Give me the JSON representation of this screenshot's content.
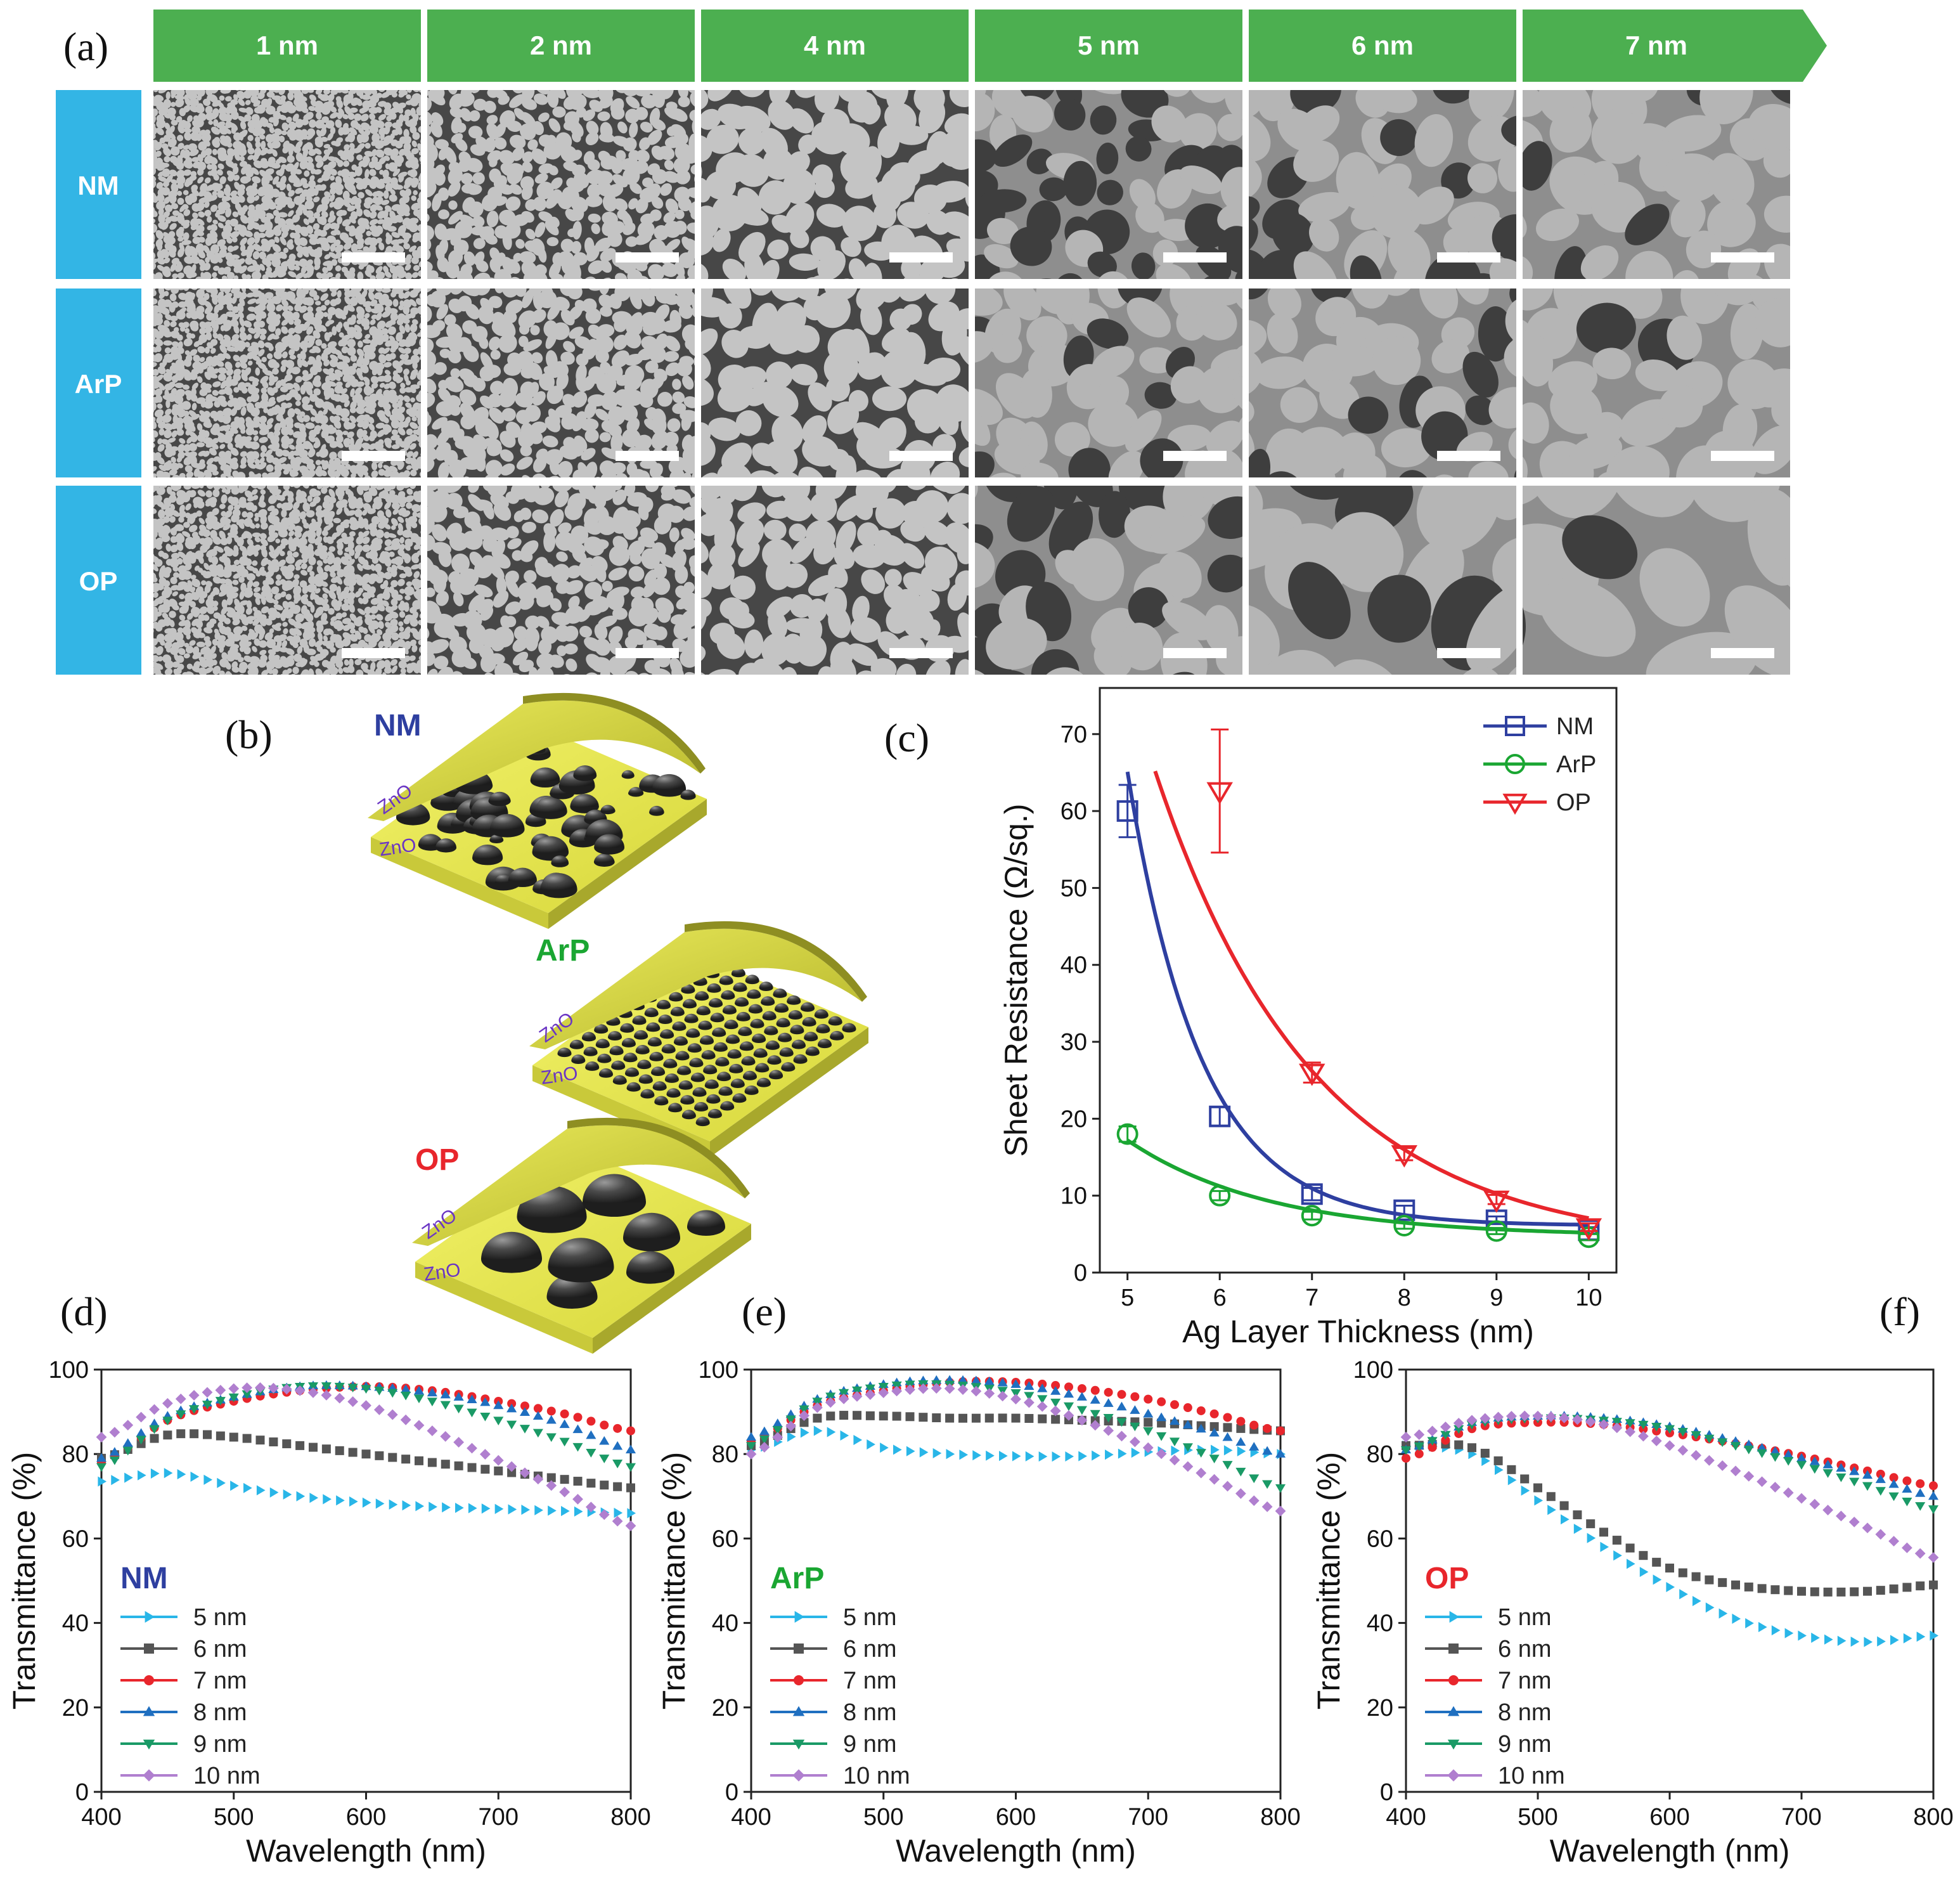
{
  "colors": {
    "green_header": "#4caf50",
    "blue_label": "#33b5e5",
    "nm": "#2e3fa0",
    "arp": "#1aa632",
    "op": "#e8262c",
    "s5": "#29b6e8",
    "s6": "#555555",
    "s7": "#e8262c",
    "s8": "#1f6fc0",
    "s9": "#1a9a66",
    "s10": "#b07fcf"
  },
  "panel_a": {
    "letter": "(a)",
    "columns": [
      "1 nm",
      "2 nm",
      "4 nm",
      "5 nm",
      "6 nm",
      "7 nm"
    ],
    "rows": [
      "NM",
      "ArP",
      "OP"
    ]
  },
  "panel_b": {
    "letter": "(b)",
    "labels": [
      "NM",
      "ArP",
      "OP"
    ],
    "layer_label": "ZnO"
  },
  "chart_data": [
    {
      "panel": "(c)",
      "type": "scatter",
      "xlabel": "Ag Layer Thickness (nm)",
      "ylabel": "Sheet Resistance (Ω/sq.)",
      "xlim": [
        4.7,
        10.3
      ],
      "ylim": [
        0,
        76
      ],
      "xticks": [
        5,
        6,
        7,
        8,
        9,
        10
      ],
      "yticks": [
        0,
        10,
        20,
        30,
        40,
        50,
        60,
        70
      ],
      "legend": [
        "NM",
        "ArP",
        "OP"
      ],
      "series": [
        {
          "name": "NM",
          "x": [
            5,
            6,
            7,
            8,
            9,
            10
          ],
          "y": [
            60,
            20.3,
            10.2,
            8.1,
            6.8,
            5.5
          ],
          "err": [
            3.4,
            1.2,
            0.8,
            0.6,
            0.5,
            0.4
          ],
          "fit": {
            "a": 59,
            "k": 1.25,
            "c": 6.1
          }
        },
        {
          "name": "ArP",
          "x": [
            5,
            6,
            7,
            8,
            9,
            10
          ],
          "y": [
            18,
            10,
            7.4,
            6.1,
            5.4,
            4.6
          ],
          "err": [
            1.0,
            0.6,
            0.5,
            0.4,
            0.4,
            0.4
          ],
          "fit": {
            "a": 12.5,
            "k": 0.65,
            "c": 4.7
          }
        },
        {
          "name": "OP",
          "x": [
            6,
            7,
            8,
            9,
            10
          ],
          "y": [
            62.6,
            26,
            15.4,
            9.5,
            5.9
          ],
          "err": [
            8,
            1.3,
            0.8,
            0.6,
            0.5
          ],
          "fit": {
            "a": 74,
            "k": 0.58,
            "c": 3
          }
        }
      ]
    },
    {
      "panel": "(d)",
      "type": "line",
      "annotation": "NM",
      "xlabel": "Wavelength (nm)",
      "ylabel": "Transmittance (%)",
      "xlim": [
        400,
        800
      ],
      "ylim": [
        0,
        100
      ],
      "xticks": [
        400,
        500,
        600,
        700,
        800
      ],
      "yticks": [
        0,
        20,
        40,
        60,
        80,
        100
      ],
      "legend": [
        "5 nm",
        "6 nm",
        "7 nm",
        "8 nm",
        "9 nm",
        "10 nm"
      ],
      "x": [
        400,
        450,
        500,
        550,
        600,
        650,
        700,
        750,
        800
      ],
      "series": [
        {
          "name": "5 nm",
          "values": [
            73.5,
            75.5,
            72.5,
            70,
            68.5,
            67.5,
            67,
            66.5,
            66
          ]
        },
        {
          "name": "6 nm",
          "values": [
            79,
            84.5,
            84,
            82,
            80,
            78,
            76,
            74,
            72
          ]
        },
        {
          "name": "7 nm",
          "values": [
            78,
            88,
            92.5,
            95,
            96,
            95,
            92.5,
            89.5,
            85.5
          ]
        },
        {
          "name": "8 nm",
          "values": [
            79,
            89,
            93.5,
            96,
            96,
            94.5,
            91.5,
            87,
            81
          ]
        },
        {
          "name": "9 nm",
          "values": [
            77,
            88,
            93.5,
            96,
            95.5,
            92.5,
            88,
            83,
            77
          ]
        },
        {
          "name": "10 nm",
          "values": [
            84,
            92,
            95.5,
            95,
            91.5,
            85.5,
            78.5,
            71,
            63
          ]
        }
      ]
    },
    {
      "panel": "(e)",
      "type": "line",
      "annotation": "ArP",
      "xlabel": "Wavelength (nm)",
      "ylabel": "Transmittance (%)",
      "xlim": [
        400,
        800
      ],
      "ylim": [
        0,
        100
      ],
      "xticks": [
        400,
        500,
        600,
        700,
        800
      ],
      "yticks": [
        0,
        20,
        40,
        60,
        80,
        100
      ],
      "legend": [
        "5 nm",
        "6 nm",
        "7 nm",
        "8 nm",
        "9 nm",
        "10 nm"
      ],
      "x": [
        400,
        450,
        500,
        550,
        600,
        650,
        700,
        750,
        800
      ],
      "series": [
        {
          "name": "5 nm",
          "values": [
            81,
            85.5,
            81.5,
            80,
            79.5,
            79.5,
            80.5,
            81,
            80
          ]
        },
        {
          "name": "6 nm",
          "values": [
            82,
            88.5,
            89,
            88.5,
            88.5,
            88,
            87.5,
            86.5,
            85.5
          ]
        },
        {
          "name": "7 nm",
          "values": [
            83,
            91.5,
            95,
            97,
            97,
            95.5,
            93,
            89.5,
            85.5
          ]
        },
        {
          "name": "8 nm",
          "values": [
            84,
            93,
            96.5,
            97.5,
            96.5,
            93.5,
            89.5,
            85,
            80
          ]
        },
        {
          "name": "9 nm",
          "values": [
            82,
            92.5,
            96,
            96.5,
            94.5,
            90.5,
            85.5,
            79,
            72
          ]
        },
        {
          "name": "10 nm",
          "values": [
            80,
            91,
            94.5,
            95.5,
            93,
            88,
            81.5,
            74,
            66.5
          ]
        }
      ]
    },
    {
      "panel": "(f)",
      "type": "line",
      "annotation": "OP",
      "xlabel": "Wavelength (nm)",
      "ylabel": "Transmittance (%)",
      "xlim": [
        400,
        800
      ],
      "ylim": [
        0,
        100
      ],
      "xticks": [
        400,
        500,
        600,
        700,
        800
      ],
      "yticks": [
        0,
        20,
        40,
        60,
        80,
        100
      ],
      "legend": [
        "5 nm",
        "6 nm",
        "7 nm",
        "8 nm",
        "9 nm",
        "10 nm"
      ],
      "x": [
        400,
        450,
        500,
        550,
        600,
        650,
        700,
        750,
        800
      ],
      "series": [
        {
          "name": "5 nm",
          "values": [
            82,
            80,
            69,
            58,
            48.5,
            41,
            37,
            35.5,
            37
          ]
        },
        {
          "name": "6 nm",
          "values": [
            82,
            81.5,
            72,
            61.5,
            53,
            49,
            47.5,
            47.5,
            49
          ]
        },
        {
          "name": "7 nm",
          "values": [
            79,
            86,
            87.5,
            87,
            85,
            82.5,
            79.5,
            76,
            72.5
          ]
        },
        {
          "name": "8 nm",
          "values": [
            81,
            87.5,
            89,
            88.5,
            86.5,
            83,
            79,
            75,
            70
          ]
        },
        {
          "name": "9 nm",
          "values": [
            81,
            87,
            88.5,
            88,
            86,
            82,
            77.5,
            72.5,
            67
          ]
        },
        {
          "name": "10 nm",
          "values": [
            84,
            88,
            89,
            87,
            82,
            76,
            69.5,
            62.5,
            55.5
          ]
        }
      ]
    }
  ]
}
